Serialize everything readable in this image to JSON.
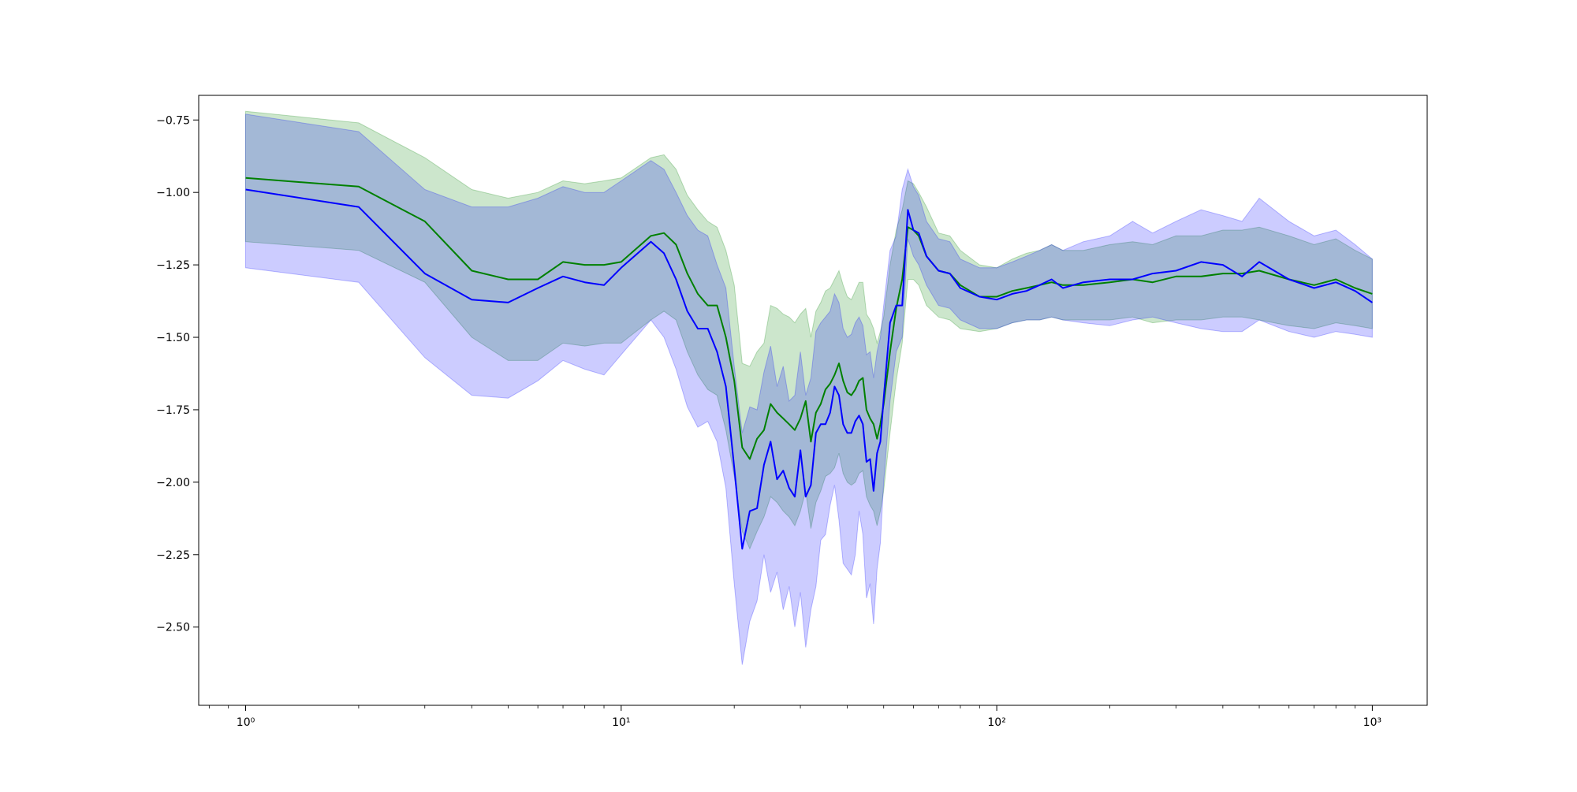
{
  "chart_data": {
    "type": "line",
    "title": "",
    "xlabel": "",
    "ylabel": "",
    "xscale": "log",
    "xlim": [
      0.75,
      1400
    ],
    "ylim": [
      -2.77,
      -0.665
    ],
    "grid": false,
    "legend": "none",
    "x_ticks": [
      {
        "value": 1,
        "label": "10⁰"
      },
      {
        "value": 10,
        "label": "10¹"
      },
      {
        "value": 100,
        "label": "10²"
      },
      {
        "value": 1000,
        "label": "10³"
      }
    ],
    "y_ticks": [
      {
        "value": -0.75,
        "label": "−0.75"
      },
      {
        "value": -1.0,
        "label": "−1.00"
      },
      {
        "value": -1.25,
        "label": "−1.25"
      },
      {
        "value": -1.5,
        "label": "−1.50"
      },
      {
        "value": -1.75,
        "label": "−1.75"
      },
      {
        "value": -2.0,
        "label": "−2.00"
      },
      {
        "value": -2.25,
        "label": "−2.25"
      },
      {
        "value": -2.5,
        "label": "−2.50"
      }
    ],
    "series": [
      {
        "color": "#008000",
        "band_color": "#008000",
        "band_opacity": 0.2,
        "x": [
          1,
          2,
          3,
          4,
          5,
          6,
          7,
          8,
          9,
          10,
          12,
          13,
          14,
          15,
          16,
          17,
          18,
          19,
          20,
          21,
          22,
          23,
          24,
          25,
          26,
          27,
          28,
          29,
          30,
          31,
          32,
          33,
          34,
          35,
          36,
          37,
          38,
          39,
          40,
          41,
          42,
          43,
          44,
          45,
          46,
          47,
          48,
          49,
          50,
          52,
          54,
          56,
          58,
          60,
          62,
          65,
          70,
          75,
          80,
          90,
          100,
          110,
          120,
          130,
          140,
          150,
          170,
          200,
          230,
          260,
          300,
          350,
          400,
          450,
          500,
          600,
          700,
          800,
          900,
          1000
        ],
        "y": [
          -0.95,
          -0.98,
          -1.1,
          -1.27,
          -1.3,
          -1.3,
          -1.24,
          -1.25,
          -1.25,
          -1.24,
          -1.15,
          -1.14,
          -1.18,
          -1.28,
          -1.35,
          -1.39,
          -1.39,
          -1.5,
          -1.65,
          -1.88,
          -1.92,
          -1.85,
          -1.82,
          -1.73,
          -1.76,
          -1.78,
          -1.8,
          -1.82,
          -1.78,
          -1.72,
          -1.86,
          -1.76,
          -1.73,
          -1.68,
          -1.66,
          -1.63,
          -1.59,
          -1.65,
          -1.69,
          -1.7,
          -1.68,
          -1.65,
          -1.64,
          -1.75,
          -1.78,
          -1.8,
          -1.85,
          -1.8,
          -1.73,
          -1.55,
          -1.4,
          -1.3,
          -1.12,
          -1.13,
          -1.15,
          -1.22,
          -1.27,
          -1.28,
          -1.32,
          -1.36,
          -1.36,
          -1.34,
          -1.33,
          -1.32,
          -1.31,
          -1.32,
          -1.32,
          -1.31,
          -1.3,
          -1.31,
          -1.29,
          -1.29,
          -1.28,
          -1.28,
          -1.27,
          -1.3,
          -1.32,
          -1.3,
          -1.33,
          -1.35
        ],
        "lower": [
          -1.17,
          -1.2,
          -1.31,
          -1.5,
          -1.58,
          -1.58,
          -1.52,
          -1.53,
          -1.52,
          -1.52,
          -1.44,
          -1.41,
          -1.44,
          -1.55,
          -1.63,
          -1.68,
          -1.7,
          -1.82,
          -1.98,
          -2.17,
          -2.23,
          -2.17,
          -2.12,
          -2.05,
          -2.07,
          -2.1,
          -2.12,
          -2.15,
          -2.1,
          -2.03,
          -2.16,
          -2.07,
          -2.03,
          -1.98,
          -1.97,
          -1.95,
          -1.9,
          -1.97,
          -2.0,
          -2.01,
          -2.0,
          -1.97,
          -1.96,
          -2.05,
          -2.08,
          -2.1,
          -2.15,
          -2.1,
          -2.03,
          -1.83,
          -1.65,
          -1.52,
          -1.3,
          -1.3,
          -1.32,
          -1.39,
          -1.43,
          -1.44,
          -1.47,
          -1.48,
          -1.47,
          -1.45,
          -1.44,
          -1.44,
          -1.43,
          -1.44,
          -1.44,
          -1.44,
          -1.43,
          -1.45,
          -1.44,
          -1.44,
          -1.43,
          -1.43,
          -1.44,
          -1.46,
          -1.47,
          -1.45,
          -1.46,
          -1.47
        ],
        "upper": [
          -0.72,
          -0.76,
          -0.88,
          -0.99,
          -1.02,
          -1.0,
          -0.96,
          -0.97,
          -0.96,
          -0.95,
          -0.88,
          -0.87,
          -0.92,
          -1.01,
          -1.06,
          -1.1,
          -1.12,
          -1.2,
          -1.32,
          -1.59,
          -1.6,
          -1.55,
          -1.52,
          -1.39,
          -1.4,
          -1.42,
          -1.43,
          -1.45,
          -1.42,
          -1.4,
          -1.5,
          -1.41,
          -1.38,
          -1.34,
          -1.33,
          -1.3,
          -1.27,
          -1.32,
          -1.36,
          -1.37,
          -1.34,
          -1.31,
          -1.31,
          -1.42,
          -1.44,
          -1.47,
          -1.52,
          -1.48,
          -1.43,
          -1.25,
          -1.13,
          -1.06,
          -0.96,
          -0.97,
          -1.0,
          -1.05,
          -1.14,
          -1.15,
          -1.2,
          -1.25,
          -1.26,
          -1.23,
          -1.21,
          -1.2,
          -1.18,
          -1.2,
          -1.2,
          -1.18,
          -1.17,
          -1.18,
          -1.15,
          -1.15,
          -1.13,
          -1.13,
          -1.12,
          -1.15,
          -1.18,
          -1.16,
          -1.2,
          -1.23
        ]
      },
      {
        "color": "#0000ff",
        "band_color": "#0000ff",
        "band_opacity": 0.2,
        "x": [
          1,
          2,
          3,
          4,
          5,
          6,
          7,
          8,
          9,
          10,
          12,
          13,
          14,
          15,
          16,
          17,
          18,
          19,
          20,
          21,
          22,
          23,
          24,
          25,
          26,
          27,
          28,
          29,
          30,
          31,
          32,
          33,
          34,
          35,
          36,
          37,
          38,
          39,
          40,
          41,
          42,
          43,
          44,
          45,
          46,
          47,
          48,
          49,
          50,
          52,
          54,
          56,
          58,
          60,
          62,
          65,
          70,
          75,
          80,
          90,
          100,
          110,
          120,
          130,
          140,
          150,
          170,
          200,
          230,
          260,
          300,
          350,
          400,
          450,
          500,
          600,
          700,
          800,
          900,
          1000
        ],
        "y": [
          -0.99,
          -1.05,
          -1.28,
          -1.37,
          -1.38,
          -1.33,
          -1.29,
          -1.31,
          -1.32,
          -1.26,
          -1.17,
          -1.21,
          -1.3,
          -1.41,
          -1.47,
          -1.47,
          -1.55,
          -1.67,
          -1.95,
          -2.23,
          -2.1,
          -2.09,
          -1.94,
          -1.86,
          -1.99,
          -1.96,
          -2.02,
          -2.05,
          -1.89,
          -2.05,
          -2.01,
          -1.83,
          -1.8,
          -1.8,
          -1.76,
          -1.67,
          -1.7,
          -1.8,
          -1.83,
          -1.83,
          -1.79,
          -1.77,
          -1.8,
          -1.93,
          -1.92,
          -2.03,
          -1.9,
          -1.86,
          -1.71,
          -1.45,
          -1.39,
          -1.39,
          -1.06,
          -1.13,
          -1.14,
          -1.22,
          -1.27,
          -1.28,
          -1.33,
          -1.36,
          -1.37,
          -1.35,
          -1.34,
          -1.32,
          -1.3,
          -1.33,
          -1.31,
          -1.3,
          -1.3,
          -1.28,
          -1.27,
          -1.24,
          -1.25,
          -1.29,
          -1.24,
          -1.3,
          -1.33,
          -1.31,
          -1.34,
          -1.38
        ],
        "lower": [
          -1.26,
          -1.31,
          -1.57,
          -1.7,
          -1.71,
          -1.65,
          -1.58,
          -1.61,
          -1.63,
          -1.56,
          -1.44,
          -1.5,
          -1.61,
          -1.74,
          -1.81,
          -1.79,
          -1.86,
          -2.02,
          -2.35,
          -2.63,
          -2.48,
          -2.41,
          -2.25,
          -2.38,
          -2.31,
          -2.44,
          -2.36,
          -2.5,
          -2.38,
          -2.57,
          -2.44,
          -2.36,
          -2.2,
          -2.18,
          -2.08,
          -2.01,
          -2.13,
          -2.28,
          -2.3,
          -2.32,
          -2.25,
          -2.1,
          -2.18,
          -2.4,
          -2.35,
          -2.49,
          -2.3,
          -2.21,
          -2.0,
          -1.72,
          -1.55,
          -1.5,
          -1.16,
          -1.22,
          -1.25,
          -1.32,
          -1.39,
          -1.4,
          -1.44,
          -1.47,
          -1.47,
          -1.45,
          -1.44,
          -1.44,
          -1.43,
          -1.44,
          -1.45,
          -1.46,
          -1.44,
          -1.43,
          -1.45,
          -1.47,
          -1.48,
          -1.48,
          -1.44,
          -1.48,
          -1.5,
          -1.48,
          -1.49,
          -1.5
        ],
        "upper": [
          -0.73,
          -0.79,
          -0.99,
          -1.05,
          -1.05,
          -1.02,
          -0.98,
          -1.0,
          -1.0,
          -0.96,
          -0.89,
          -0.92,
          -1.0,
          -1.08,
          -1.13,
          -1.15,
          -1.25,
          -1.33,
          -1.6,
          -1.83,
          -1.74,
          -1.75,
          -1.62,
          -1.53,
          -1.67,
          -1.6,
          -1.72,
          -1.7,
          -1.55,
          -1.7,
          -1.64,
          -1.48,
          -1.45,
          -1.43,
          -1.41,
          -1.35,
          -1.38,
          -1.47,
          -1.5,
          -1.49,
          -1.45,
          -1.43,
          -1.46,
          -1.56,
          -1.55,
          -1.64,
          -1.55,
          -1.5,
          -1.39,
          -1.2,
          -1.15,
          -0.99,
          -0.92,
          -0.98,
          -1.01,
          -1.1,
          -1.16,
          -1.17,
          -1.23,
          -1.26,
          -1.26,
          -1.24,
          -1.22,
          -1.2,
          -1.18,
          -1.2,
          -1.17,
          -1.15,
          -1.1,
          -1.14,
          -1.1,
          -1.06,
          -1.08,
          -1.1,
          -1.02,
          -1.1,
          -1.15,
          -1.13,
          -1.18,
          -1.23
        ]
      }
    ]
  }
}
